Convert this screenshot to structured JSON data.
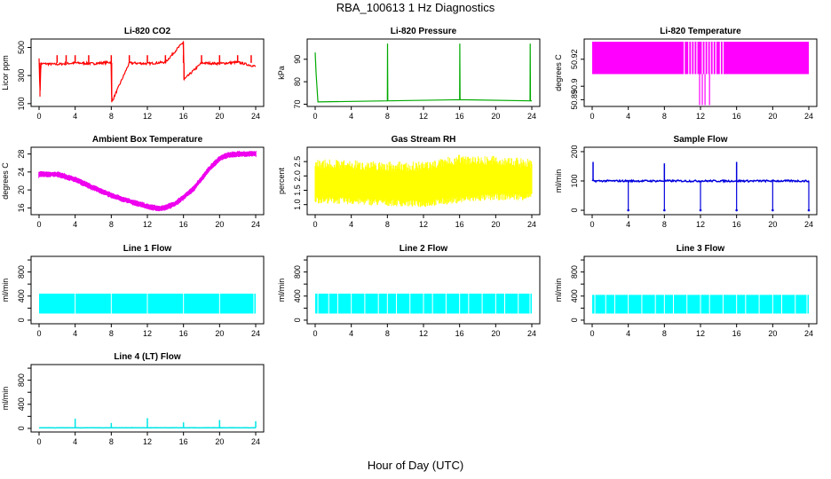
{
  "title": "RBA_100613  1 Hz Diagnostics",
  "x_axis_label": "Hour of Day (UTC)",
  "chart_data": [
    {
      "type": "line",
      "title": "Li-820 CO2",
      "ylabel": "Licor ppm",
      "color": "#ff0000",
      "xlim": [
        0,
        24
      ],
      "xticks": [
        0,
        4,
        8,
        12,
        16,
        20,
        24
      ],
      "ylim": [
        80,
        560
      ],
      "yticks": [
        100,
        300,
        500
      ],
      "baseline": 390,
      "noise": 8,
      "spikes": [
        2,
        3,
        4,
        5.5,
        8,
        10,
        12,
        14,
        16,
        18,
        20,
        22,
        23.5
      ],
      "series": [
        {
          "x": [
            0,
            0.1,
            0.2,
            2,
            4,
            6,
            8,
            8.05,
            10,
            12,
            14,
            16,
            16.05,
            18,
            20,
            22,
            24
          ],
          "values": [
            430,
            150,
            385,
            380,
            390,
            385,
            395,
            110,
            390,
            385,
            395,
            540,
            270,
            390,
            385,
            395,
            365
          ]
        }
      ]
    },
    {
      "type": "line",
      "title": "Li-820 Pressure",
      "ylabel": "kPa",
      "color": "#00aa00",
      "xlim": [
        0,
        24
      ],
      "xticks": [
        0,
        4,
        8,
        12,
        16,
        20,
        24
      ],
      "ylim": [
        69,
        99
      ],
      "yticks": [
        70,
        80,
        90
      ],
      "series": [
        {
          "x": [
            0,
            0.1,
            0.3,
            8,
            8.02,
            8.05,
            16,
            16.02,
            16.05,
            23.8,
            23.82,
            23.85,
            24
          ],
          "values": [
            93,
            84,
            71,
            71.5,
            97,
            71.5,
            72,
            97,
            72,
            71.5,
            97,
            71.5,
            71.5
          ]
        }
      ]
    },
    {
      "type": "area",
      "title": "Li-820 Temperature",
      "ylabel": "degrees C",
      "color": "#ff00ff",
      "xlim": [
        0,
        24
      ],
      "xticks": [
        0,
        4,
        8,
        12,
        16,
        20,
        24
      ],
      "ylim": [
        50.885,
        50.935
      ],
      "yticks": [
        50.89,
        50.9,
        50.92
      ],
      "ytick_labels": [
        "50.89",
        "50.9",
        "50.92"
      ],
      "band": [
        50.909,
        50.933
      ],
      "dips": [
        {
          "x": 12.2,
          "to": 50.886
        },
        {
          "x": 12.5,
          "to": 50.886
        },
        {
          "x": 13.0,
          "to": 50.886
        },
        {
          "x": 11.9,
          "to": 50.886
        }
      ],
      "gaps": [
        10.2,
        10.7,
        11.0,
        11.3,
        11.6,
        12.2,
        12.5,
        12.8,
        13.1,
        13.4,
        13.7,
        14.2,
        14.5
      ]
    },
    {
      "type": "line",
      "title": "Ambient Box Temperature",
      "ylabel": "degrees C",
      "color": "#ee00ee",
      "xlim": [
        0,
        24
      ],
      "xticks": [
        0,
        4,
        8,
        12,
        16,
        20,
        24
      ],
      "ylim": [
        14.5,
        29.5
      ],
      "yticks": [
        16,
        20,
        24,
        28
      ],
      "band_width": 0.8,
      "series": [
        {
          "x": [
            0,
            2,
            4,
            6,
            8,
            10,
            12,
            13.5,
            15,
            17,
            18,
            19,
            20,
            21,
            22,
            24
          ],
          "values": [
            23.5,
            23.5,
            22.3,
            20.5,
            18.8,
            17.5,
            16.3,
            15.8,
            16.8,
            20,
            22.5,
            25,
            27,
            27.8,
            28,
            28
          ]
        }
      ]
    },
    {
      "type": "area",
      "title": "Gas Stream RH",
      "ylabel": "percent",
      "color": "#ffff00",
      "xlim": [
        0,
        24
      ],
      "xticks": [
        0,
        4,
        8,
        12,
        16,
        20,
        24
      ],
      "ylim": [
        0.65,
        3.0
      ],
      "yticks": [
        1.0,
        1.5,
        2.0,
        2.5
      ],
      "ytick_labels": [
        "1.0",
        "1.5",
        "2.0",
        "2.5"
      ],
      "series": [
        {
          "name": "upper",
          "x": [
            0,
            4,
            8,
            12,
            16,
            20,
            24
          ],
          "values": [
            2.6,
            2.55,
            2.5,
            2.5,
            2.75,
            2.7,
            2.6
          ]
        },
        {
          "name": "lower",
          "x": [
            0,
            4,
            8,
            12,
            16,
            20,
            24
          ],
          "values": [
            1.05,
            1.0,
            0.95,
            0.9,
            1.05,
            1.15,
            1.15
          ]
        }
      ]
    },
    {
      "type": "line",
      "title": "Sample Flow",
      "ylabel": "ml/min",
      "color": "#0000dd",
      "xlim": [
        0,
        24
      ],
      "xticks": [
        0,
        4,
        8,
        12,
        16,
        20,
        24
      ],
      "ylim": [
        -15,
        215
      ],
      "yticks": [
        0,
        100,
        200
      ],
      "baseline": 100,
      "spikes_up": [
        {
          "x": 0.1,
          "to": 165
        },
        {
          "x": 8,
          "to": 160
        },
        {
          "x": 16,
          "to": 165
        }
      ],
      "spikes_down": [
        4,
        8,
        12,
        16,
        20,
        24
      ]
    },
    {
      "type": "area",
      "title": "Line 1 Flow",
      "ylabel": "ml/min",
      "color": "#00ffff",
      "xlim": [
        0,
        24
      ],
      "xticks": [
        0,
        4,
        8,
        12,
        16,
        20,
        24
      ],
      "ylim": [
        -60,
        1060
      ],
      "yticks": [
        0,
        200,
        400,
        600,
        800,
        1000
      ],
      "ytick_labels": [
        "0",
        "",
        "400",
        "",
        "800",
        ""
      ],
      "band": [
        110,
        440
      ],
      "gaps": [
        4,
        8,
        12,
        16,
        20,
        23.8
      ]
    },
    {
      "type": "area",
      "title": "Line 2 Flow",
      "ylabel": "ml/min",
      "color": "#00ffff",
      "xlim": [
        0,
        24
      ],
      "xticks": [
        0,
        4,
        8,
        12,
        16,
        20,
        24
      ],
      "ylim": [
        -60,
        1060
      ],
      "yticks": [
        0,
        200,
        400,
        600,
        800,
        1000
      ],
      "ytick_labels": [
        "0",
        "",
        "400",
        "",
        "800",
        ""
      ],
      "band": [
        110,
        440
      ],
      "gaps": [
        0.3,
        1.5,
        2.5,
        4,
        5.5,
        7,
        8,
        9,
        10.5,
        12,
        13,
        14.5,
        16,
        17,
        18.5,
        20,
        21,
        22.5,
        23.8
      ]
    },
    {
      "type": "area",
      "title": "Line 3 Flow",
      "ylabel": "ml/min",
      "color": "#00ffff",
      "xlim": [
        0,
        24
      ],
      "xticks": [
        0,
        4,
        8,
        12,
        16,
        20,
        24
      ],
      "ylim": [
        -60,
        1060
      ],
      "yticks": [
        0,
        200,
        400,
        600,
        800,
        1000
      ],
      "ytick_labels": [
        "0",
        "",
        "400",
        "",
        "800",
        ""
      ],
      "band": [
        110,
        420
      ],
      "gaps": [
        0.3,
        1.5,
        2.5,
        4,
        5.5,
        7,
        8,
        9,
        10.5,
        12,
        13,
        14.5,
        16,
        17,
        18.5,
        20,
        21,
        22.5,
        23.8
      ]
    },
    {
      "type": "line",
      "title": "Line 4 (LT) Flow",
      "ylabel": "ml/min",
      "color": "#00e5e5",
      "xlim": [
        0,
        24
      ],
      "xticks": [
        0,
        4,
        8,
        12,
        16,
        20,
        24
      ],
      "ylim": [
        -60,
        1060
      ],
      "yticks": [
        0,
        200,
        400,
        600,
        800,
        1000
      ],
      "ytick_labels": [
        "0",
        "",
        "400",
        "",
        "800",
        ""
      ],
      "baseline": 10,
      "spikes_up": [
        {
          "x": 4,
          "to": 160
        },
        {
          "x": 8,
          "to": 90
        },
        {
          "x": 12,
          "to": 170
        },
        {
          "x": 16,
          "to": 100
        },
        {
          "x": 20,
          "to": 140
        },
        {
          "x": 24,
          "to": 120
        }
      ]
    }
  ]
}
